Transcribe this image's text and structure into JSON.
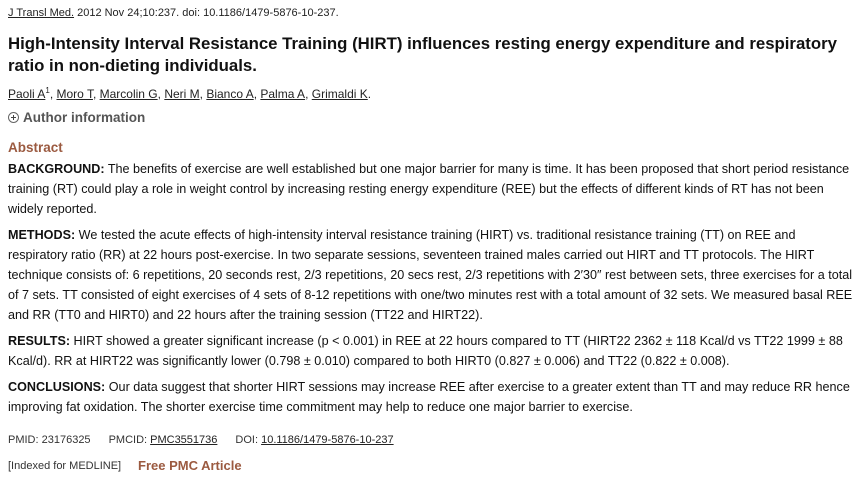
{
  "citation": {
    "journal": "J Transl Med.",
    "rest": " 2012 Nov 24;10:237. doi: 10.1186/1479-5876-10-237."
  },
  "title": "High-Intensity Interval Resistance Training (HIRT) influences resting energy expenditure and respiratory ratio in non-dieting individuals.",
  "authors": [
    {
      "name": "Paoli A",
      "sup": "1"
    },
    {
      "name": "Moro T"
    },
    {
      "name": "Marcolin G"
    },
    {
      "name": "Neri M"
    },
    {
      "name": "Bianco A"
    },
    {
      "name": "Palma A"
    },
    {
      "name": "Grimaldi K"
    }
  ],
  "author_info_label": "Author information",
  "abstract_heading": "Abstract",
  "sections": [
    {
      "label": "BACKGROUND:",
      "text": " The benefits of exercise are well established but one major barrier for many is time. It has been proposed that short period resistance training (RT) could play a role in weight control by increasing resting energy expenditure (REE) but the effects of different kinds of RT has not been widely reported."
    },
    {
      "label": "METHODS:",
      "text": " We tested the acute effects of high-intensity interval resistance training (HIRT) vs. traditional resistance training (TT) on REE and respiratory ratio (RR) at 22 hours post-exercise. In two separate sessions, seventeen trained males carried out HIRT and TT protocols. The HIRT technique consists of: 6 repetitions, 20 seconds rest, 2/3 repetitions, 20 secs rest, 2/3 repetitions with 2′30″ rest between sets, three exercises for a total of 7 sets. TT consisted of eight exercises of 4 sets of 8-12 repetitions with one/two minutes rest with a total amount of 32 sets. We measured basal REE and RR (TT0 and HIRT0) and 22 hours after the training session (TT22 and HIRT22)."
    },
    {
      "label": "RESULTS:",
      "text": " HIRT showed a greater significant increase (p < 0.001) in REE at 22 hours compared to TT (HIRT22 2362 ± 118 Kcal/d vs TT22 1999 ± 88 Kcal/d). RR at HIRT22 was significantly lower (0.798 ± 0.010) compared to both HIRT0 (0.827 ± 0.006) and TT22 (0.822 ± 0.008)."
    },
    {
      "label": "CONCLUSIONS:",
      "text": " Our data suggest that shorter HIRT sessions may increase REE after exercise to a greater extent than TT and may reduce RR hence improving fat oxidation. The shorter exercise time commitment may help to reduce one major barrier to exercise."
    }
  ],
  "meta": {
    "pmid": "PMID: 23176325",
    "pmcid_label": "PMCID: ",
    "pmcid": "PMC3551736",
    "doi_label": "DOI: ",
    "doi": "10.1186/1479-5876-10-237"
  },
  "indexed": "[Indexed for MEDLINE]",
  "free_pmc": "Free PMC Article"
}
